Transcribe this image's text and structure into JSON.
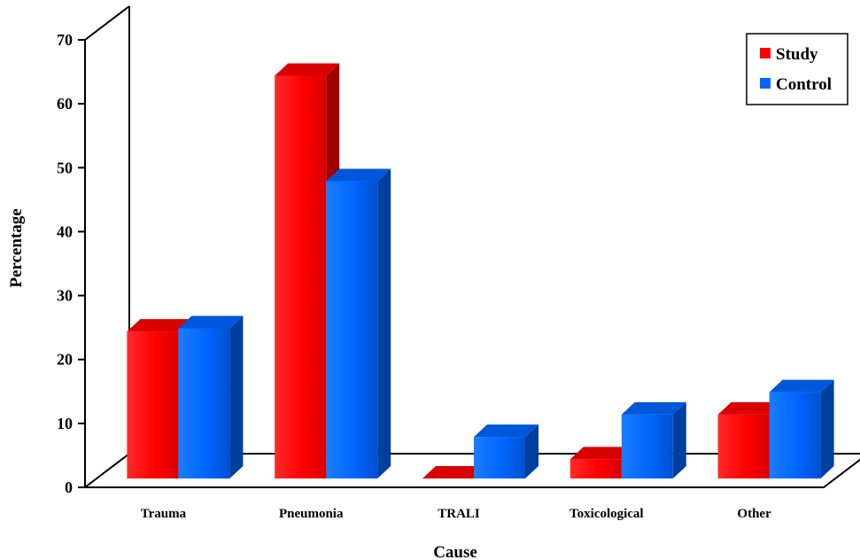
{
  "chart_data": {
    "type": "bar",
    "title": "",
    "xlabel": "Cause",
    "ylabel": "Percentage",
    "categories": [
      "Trauma",
      "Pneumonia",
      "TRALI",
      "Toxicological",
      "Other"
    ],
    "series": [
      {
        "name": "Study",
        "values": [
          23,
          63,
          0,
          3,
          10
        ],
        "color": "#ff0000"
      },
      {
        "name": "Control",
        "values": [
          23.5,
          46.5,
          6.5,
          10,
          13.5
        ],
        "color": "#0066ff"
      }
    ],
    "ylim": [
      0,
      70
    ],
    "yticks": [
      0,
      10,
      20,
      30,
      40,
      50,
      60,
      70
    ],
    "grid": false,
    "legend_position": "top-right",
    "style": "3d-column"
  }
}
